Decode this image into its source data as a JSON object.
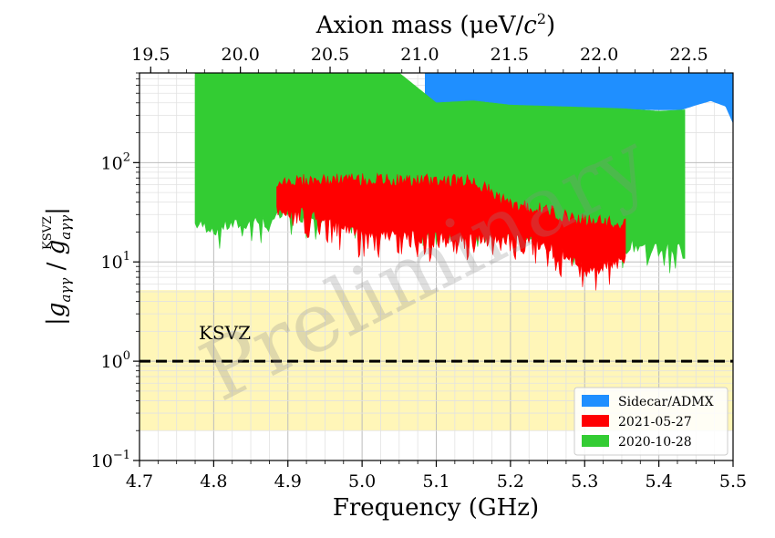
{
  "chart_data": {
    "type": "area",
    "xlabel": "Frequency (GHz)",
    "x2label_main": "Axion mass (",
    "x2label_unit_mu": "μeV/",
    "x2label_unit_c": "c",
    "x2label_unit_exp": "2",
    "x2label_close": ")",
    "ylabel": "|g_aγγ / g_aγγ^KSVZ|",
    "ylabel_g": "g",
    "ylabel_sub": "aγγ",
    "ylabel_sup": "KSVZ",
    "xlim": [
      4.7,
      5.5
    ],
    "ylim": [
      0.1,
      800
    ],
    "yscale": "log",
    "grid": true,
    "x_ticks": [
      "4.7",
      "4.8",
      "4.9",
      "5.0",
      "5.1",
      "5.2",
      "5.3",
      "5.4",
      "5.5"
    ],
    "x_tick_values": [
      4.7,
      4.8,
      4.9,
      5.0,
      5.1,
      5.2,
      5.3,
      5.4,
      5.5
    ],
    "x2_ticks": [
      "19.5",
      "20.0",
      "20.5",
      "21.0",
      "21.5",
      "22.0",
      "22.5"
    ],
    "x2_tick_values": [
      19.5,
      20.0,
      20.5,
      21.0,
      21.5,
      22.0,
      22.5
    ],
    "y_ticks": [
      {
        "base": "10",
        "exp": "−1",
        "value": 0.1
      },
      {
        "base": "10",
        "exp": "0",
        "value": 1
      },
      {
        "base": "10",
        "exp": "1",
        "value": 10
      },
      {
        "base": "10",
        "exp": "2",
        "value": 100
      }
    ],
    "ksvz_band": [
      0.2,
      5.2
    ],
    "ksvz_line": 1,
    "annotation": "KSVZ",
    "watermark": "Preliminary",
    "legend_position": "bottom-right",
    "colors": {
      "sidecar": "#1f8fff",
      "run2021": "#ff0000",
      "run2020": "#33cc33",
      "band": "#fff6b8"
    },
    "series": [
      {
        "name": "Sidecar/ADMX",
        "color": "#1f8fff",
        "x": [
          5.085,
          5.1,
          5.2,
          5.3,
          5.4,
          5.43,
          5.45,
          5.47,
          5.49,
          5.5
        ],
        "lower": [
          400,
          380,
          360,
          350,
          340,
          340,
          380,
          420,
          370,
          250
        ],
        "upper": [
          800,
          800,
          800,
          800,
          800,
          800,
          800,
          800,
          800,
          800
        ]
      },
      {
        "name": "2021-05-27",
        "color": "#ff0000",
        "x": [
          4.885,
          4.95,
          4.99,
          5.05,
          5.1,
          5.15,
          5.18,
          5.2,
          5.25,
          5.28,
          5.3,
          5.32,
          5.34,
          5.355
        ],
        "lower": [
          35,
          28,
          20,
          18,
          18,
          17,
          17,
          18,
          15,
          11,
          8,
          9,
          10,
          11
        ],
        "upper": [
          70,
          70,
          72,
          70,
          70,
          70,
          50,
          40,
          35,
          30,
          28,
          27,
          26,
          25
        ]
      },
      {
        "name": "2020-10-28",
        "color": "#33cc33",
        "x": [
          4.775,
          4.8,
          4.85,
          4.9,
          4.95,
          5.0,
          5.05,
          5.1,
          5.15,
          5.2,
          5.25,
          5.3,
          5.35,
          5.4,
          5.435
        ],
        "lower": [
          24,
          22,
          25,
          30,
          28,
          25,
          35,
          22,
          22,
          20,
          17,
          16,
          15,
          14,
          14
        ],
        "upper": [
          800,
          800,
          800,
          800,
          800,
          800,
          800,
          400,
          420,
          380,
          370,
          360,
          350,
          330,
          340
        ]
      }
    ]
  }
}
